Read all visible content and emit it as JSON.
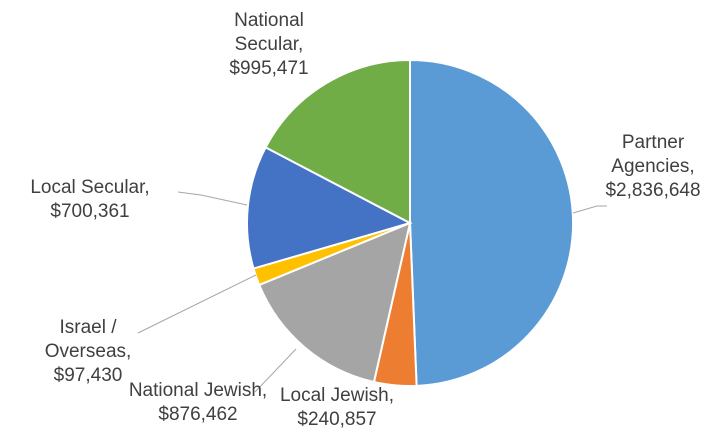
{
  "chart_data": {
    "type": "pie",
    "slices": [
      {
        "label_lines": [
          "Partner",
          "Agencies,",
          "$2,836,648"
        ],
        "category": "Partner Agencies",
        "value": 2836648,
        "color": "#5b9bd5"
      },
      {
        "label_lines": [
          "Local Jewish,",
          "$240,857"
        ],
        "category": "Local Jewish",
        "value": 240857,
        "color": "#ed7d31"
      },
      {
        "label_lines": [
          "National Jewish,",
          "$876,462"
        ],
        "category": "National Jewish",
        "value": 876462,
        "color": "#a5a5a5"
      },
      {
        "label_lines": [
          "Israel /",
          "Overseas,",
          "$97,430"
        ],
        "category": "Israel / Overseas",
        "value": 97430,
        "color": "#ffc000"
      },
      {
        "label_lines": [
          "Local Secular,",
          "$700,361"
        ],
        "category": "Local Secular",
        "value": 700361,
        "color": "#4472c4"
      },
      {
        "label_lines": [
          "National",
          "Secular,",
          "$995,471"
        ],
        "category": "National Secular",
        "value": 995471,
        "color": "#70ad47"
      }
    ],
    "start_angle": "12 o'clock",
    "direction": "clockwise",
    "legend": "none",
    "data_labels": "category name and value, outside with leader lines"
  }
}
